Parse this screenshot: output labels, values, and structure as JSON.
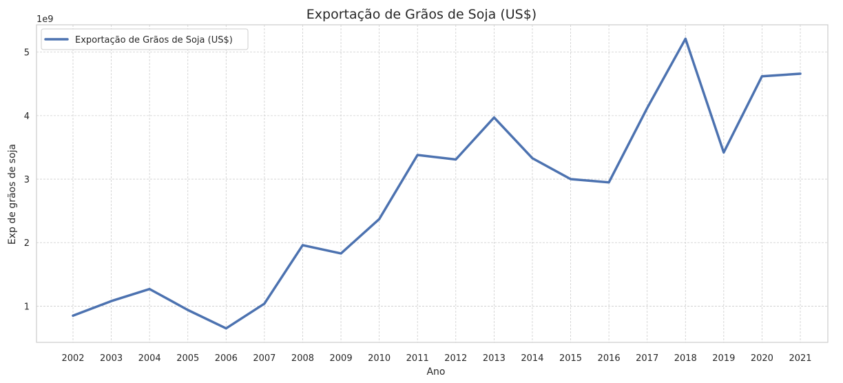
{
  "chart_data": {
    "type": "line",
    "title": "Exportação de Grãos de Soja (US$)",
    "xlabel": "Ano",
    "ylabel": "Exp de grãos de soja",
    "y_offset_label": "1e9",
    "y_scale": 1000000000,
    "ylim": [
      430000000,
      5430000000
    ],
    "yticks": [
      1,
      2,
      3,
      4,
      5
    ],
    "grid": true,
    "legend_position": "top-left",
    "x": [
      "2002",
      "2003",
      "2004",
      "2005",
      "2006",
      "2007",
      "2008",
      "2009",
      "2010",
      "2011",
      "2012",
      "2013",
      "2014",
      "2015",
      "2016",
      "2017",
      "2018",
      "2019",
      "2020",
      "2021"
    ],
    "series": [
      {
        "name": "Exportação de Grãos de Soja (US$)",
        "color": "#4c72b0",
        "values": [
          850000000,
          1080000000,
          1270000000,
          940000000,
          650000000,
          1040000000,
          1960000000,
          1830000000,
          2370000000,
          3380000000,
          3310000000,
          3970000000,
          3330000000,
          3000000000,
          2950000000,
          4120000000,
          5210000000,
          3420000000,
          4620000000,
          4660000000
        ]
      }
    ]
  }
}
